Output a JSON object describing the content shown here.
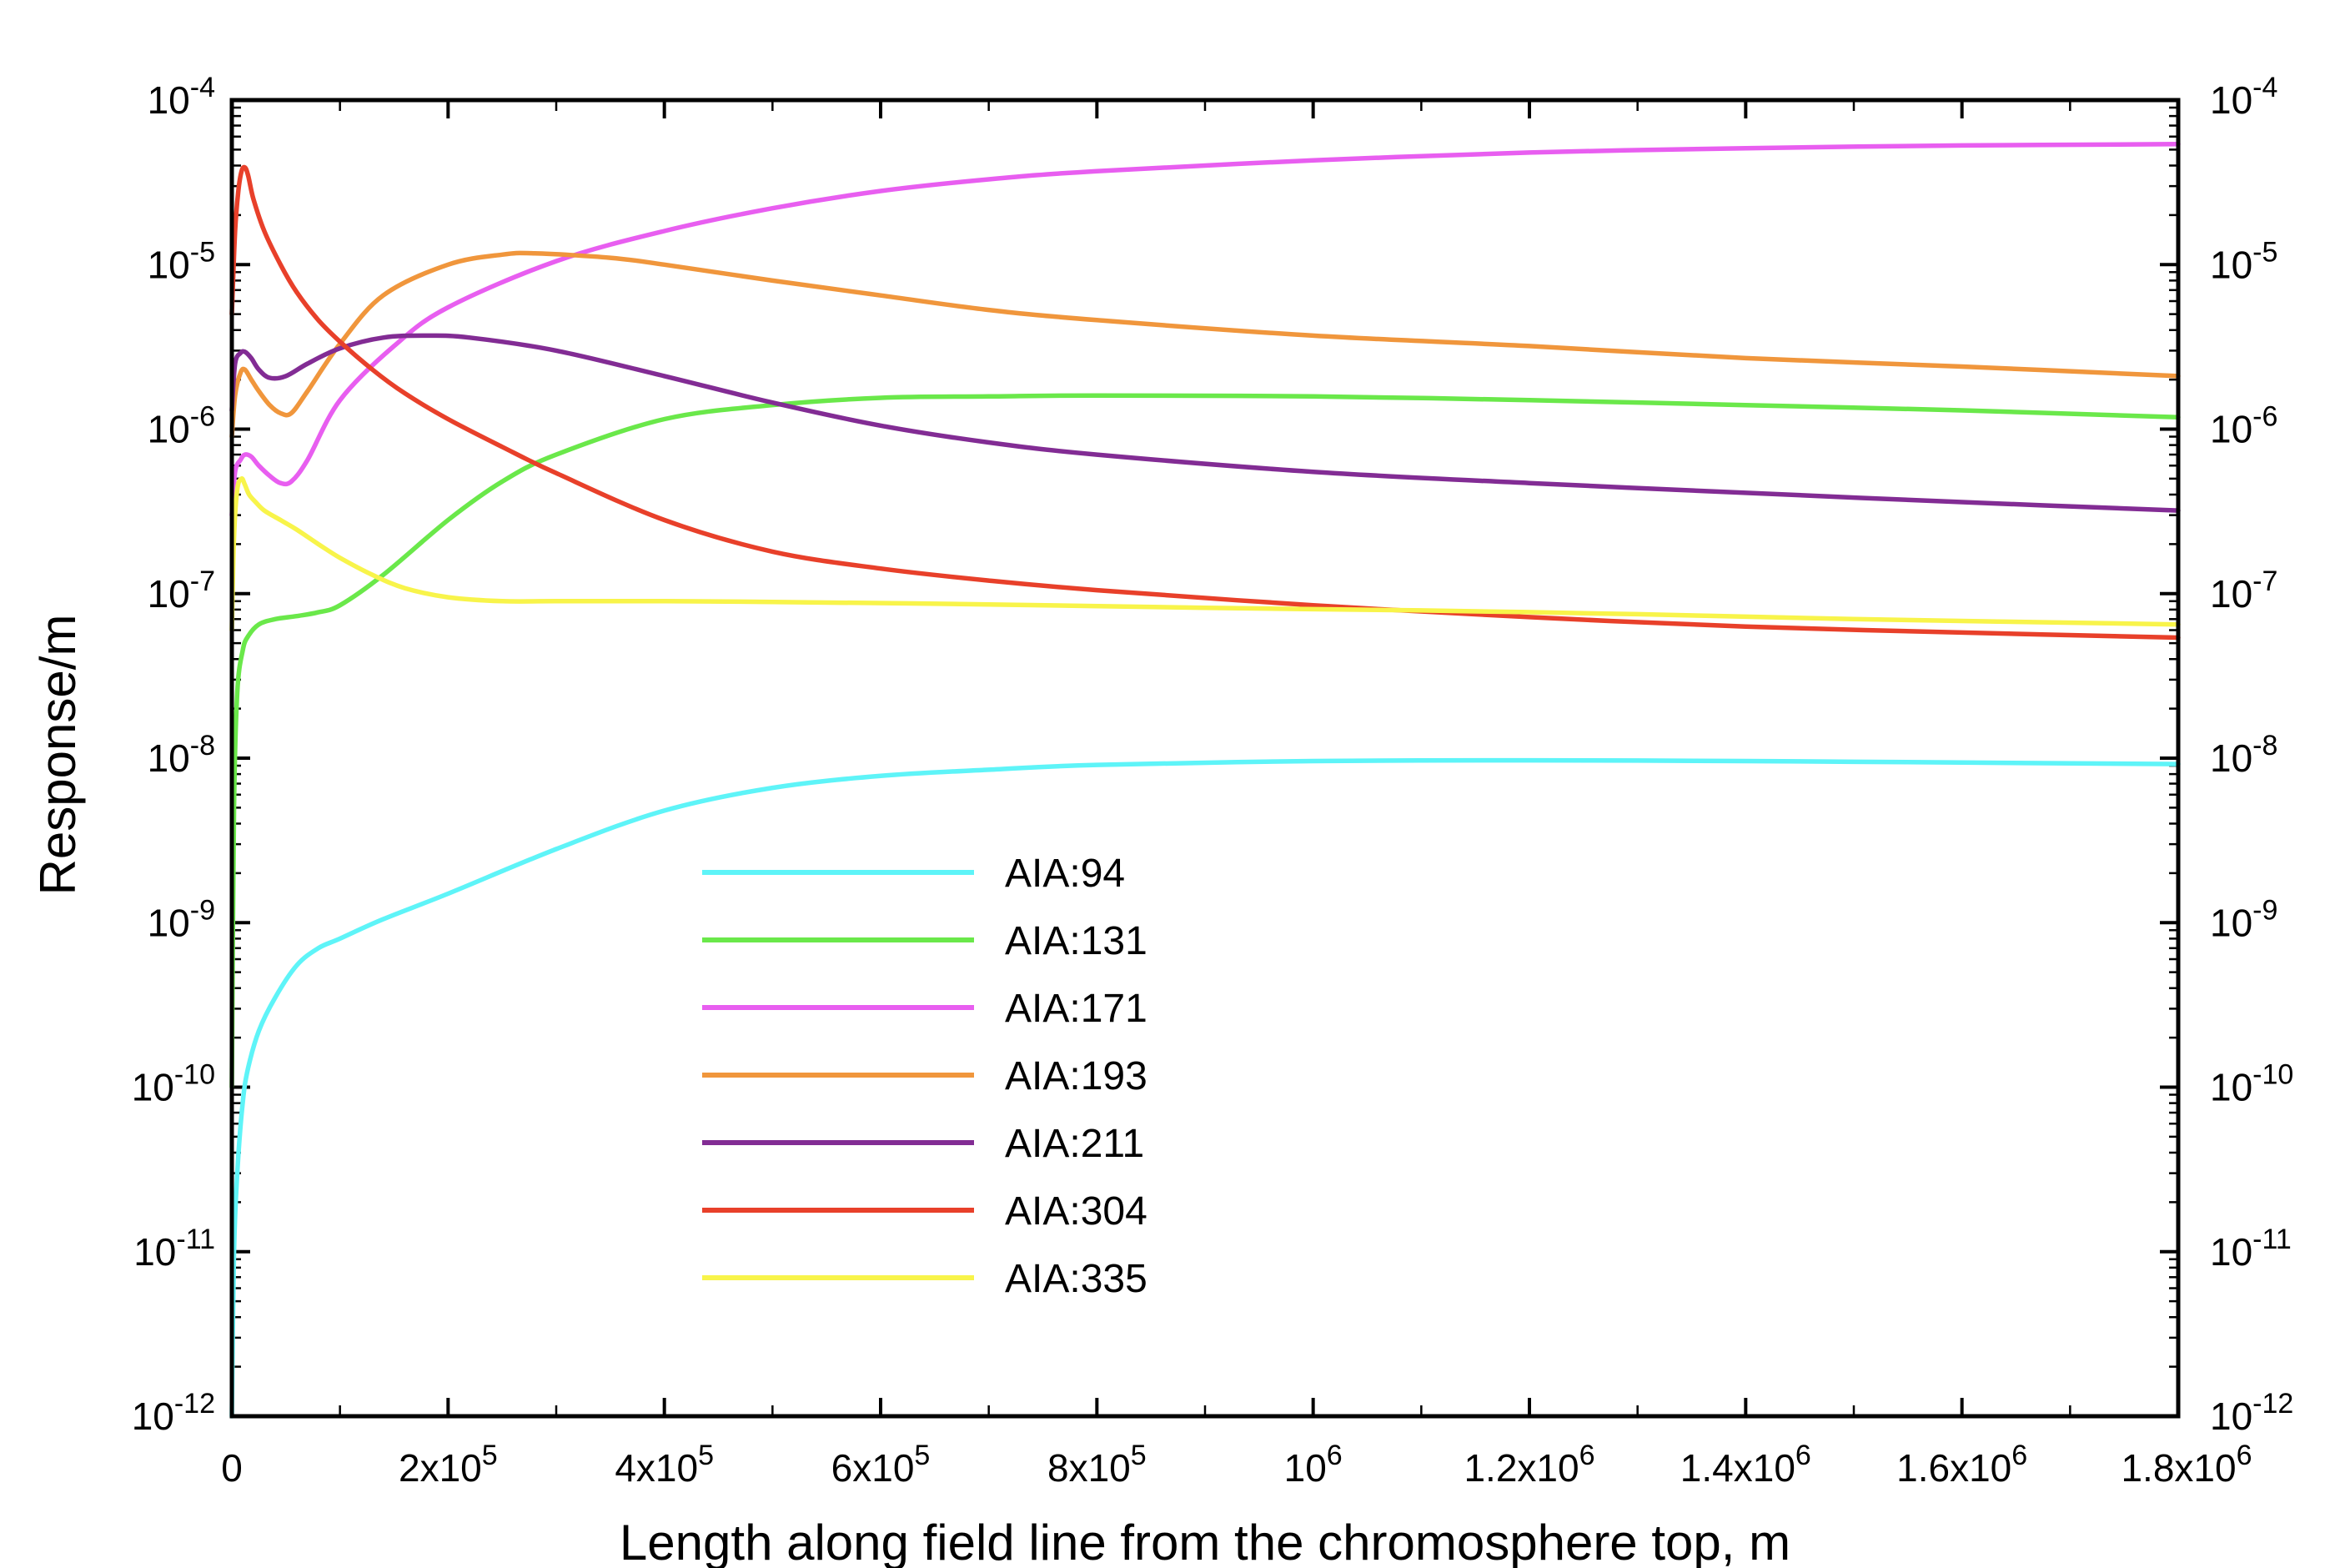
{
  "chart_data": {
    "type": "line",
    "title": "",
    "xlabel": "Length along field line from the chromosphere top, m",
    "ylabel": "Response/m",
    "xscale": "linear",
    "yscale": "log",
    "xlim": [
      0,
      1800000
    ],
    "ylim": [
      1e-12,
      0.0001
    ],
    "legend_position": "lower-center",
    "x_ticks": [
      {
        "value": 0,
        "base": "0",
        "exp": ""
      },
      {
        "value": 200000,
        "base": "2x10",
        "exp": "5"
      },
      {
        "value": 400000,
        "base": "4x10",
        "exp": "5"
      },
      {
        "value": 600000,
        "base": "6x10",
        "exp": "5"
      },
      {
        "value": 800000,
        "base": "8x10",
        "exp": "5"
      },
      {
        "value": 1000000,
        "base": "10",
        "exp": "6"
      },
      {
        "value": 1200000,
        "base": "1.2x10",
        "exp": "6"
      },
      {
        "value": 1400000,
        "base": "1.4x10",
        "exp": "6"
      },
      {
        "value": 1600000,
        "base": "1.6x10",
        "exp": "6"
      },
      {
        "value": 1800000,
        "base": "1.8x10",
        "exp": "6"
      }
    ],
    "y_ticks": [
      {
        "value": -4,
        "base": "10",
        "exp": "-4"
      },
      {
        "value": -5,
        "base": "10",
        "exp": "-5"
      },
      {
        "value": -6,
        "base": "10",
        "exp": "-6"
      },
      {
        "value": -7,
        "base": "10",
        "exp": "-7"
      },
      {
        "value": -8,
        "base": "10",
        "exp": "-8"
      },
      {
        "value": -9,
        "base": "10",
        "exp": "-9"
      },
      {
        "value": -10,
        "base": "10",
        "exp": "-10"
      },
      {
        "value": -11,
        "base": "10",
        "exp": "-11"
      },
      {
        "value": -12,
        "base": "10",
        "exp": "-12"
      }
    ],
    "series": [
      {
        "name": "AIA:94",
        "color": "#5ef4f8",
        "x": [
          0,
          2000,
          5000,
          10000,
          15000,
          25000,
          40000,
          60000,
          80000,
          100000,
          140000,
          200000,
          300000,
          400000,
          500000,
          600000,
          700000,
          800000,
          1000000,
          1200000,
          1400000,
          1600000,
          1800000
        ],
        "y": [
          1e-12,
          1e-11,
          3e-11,
          8e-11,
          1.3e-10,
          2.2e-10,
          3.5e-10,
          5.5e-10,
          7e-10,
          8e-10,
          1.05e-09,
          1.5e-09,
          2.8e-09,
          4.8e-09,
          6.6e-09,
          7.8e-09,
          8.5e-09,
          9.1e-09,
          9.6e-09,
          9.7e-09,
          9.6e-09,
          9.4e-09,
          9.2e-09
        ]
      },
      {
        "name": "AIA:131",
        "color": "#6ae84a",
        "x": [
          0,
          2000,
          5000,
          10000,
          15000,
          25000,
          40000,
          60000,
          80000,
          100000,
          140000,
          200000,
          250000,
          300000,
          400000,
          500000,
          600000,
          700000,
          800000,
          1000000,
          1200000,
          1400000,
          1600000,
          1800000
        ],
        "y": [
          1e-10,
          5e-09,
          2.5e-08,
          4.5e-08,
          5.5e-08,
          6.5e-08,
          7e-08,
          7.3e-08,
          7.7e-08,
          8.5e-08,
          1.3e-07,
          2.8e-07,
          4.8e-07,
          7e-07,
          1.15e-06,
          1.4e-06,
          1.55e-06,
          1.58e-06,
          1.6e-06,
          1.58e-06,
          1.5e-06,
          1.4e-06,
          1.3e-06,
          1.18e-06
        ]
      },
      {
        "name": "AIA:171",
        "color": "#e85ef0",
        "x": [
          0,
          3000,
          8000,
          12000,
          18000,
          25000,
          35000,
          45000,
          55000,
          70000,
          100000,
          150000,
          200000,
          300000,
          400000,
          500000,
          600000,
          700000,
          800000,
          1000000,
          1200000,
          1400000,
          1600000,
          1800000
        ],
        "y": [
          3e-07,
          5.5e-07,
          6.5e-07,
          7e-07,
          6.8e-07,
          6e-07,
          5.2e-07,
          4.7e-07,
          4.8e-07,
          6.5e-07,
          1.5e-06,
          3.2e-06,
          5.5e-06,
          1.05e-05,
          1.6e-05,
          2.2e-05,
          2.8e-05,
          3.3e-05,
          3.7e-05,
          4.3e-05,
          4.8e-05,
          5.1e-05,
          5.3e-05,
          5.4e-05
        ]
      },
      {
        "name": "AIA:193",
        "color": "#f0963c",
        "x": [
          0,
          3000,
          8000,
          12000,
          18000,
          25000,
          35000,
          45000,
          55000,
          70000,
          100000,
          140000,
          200000,
          250000,
          280000,
          350000,
          400000,
          500000,
          600000,
          700000,
          800000,
          1000000,
          1200000,
          1400000,
          1600000,
          1800000
        ],
        "y": [
          9e-07,
          1.6e-06,
          2.2e-06,
          2.3e-06,
          2e-06,
          1.7e-06,
          1.4e-06,
          1.25e-06,
          1.25e-06,
          1.7e-06,
          3.3e-06,
          6.5e-06,
          1e-05,
          1.15e-05,
          1.17e-05,
          1.1e-05,
          1e-05,
          8e-06,
          6.5e-06,
          5.3e-06,
          4.6e-06,
          3.7e-06,
          3.2e-06,
          2.7e-06,
          2.4e-06,
          2.1e-06
        ]
      },
      {
        "name": "AIA:211",
        "color": "#822c94",
        "x": [
          0,
          3000,
          8000,
          12000,
          18000,
          25000,
          35000,
          50000,
          70000,
          100000,
          140000,
          180000,
          220000,
          300000,
          400000,
          500000,
          600000,
          700000,
          800000,
          1000000,
          1200000,
          1400000,
          1600000,
          1800000
        ],
        "y": [
          1.3e-06,
          2.5e-06,
          2.9e-06,
          2.95e-06,
          2.7e-06,
          2.3e-06,
          2.05e-06,
          2.1e-06,
          2.5e-06,
          3.1e-06,
          3.6e-06,
          3.7e-06,
          3.6e-06,
          3e-06,
          2.1e-06,
          1.45e-06,
          1.05e-06,
          8.3e-07,
          7e-07,
          5.5e-07,
          4.7e-07,
          4.1e-07,
          3.6e-07,
          3.2e-07
        ]
      },
      {
        "name": "AIA:304",
        "color": "#e8402a",
        "x": [
          0,
          3000,
          6000,
          9000,
          12000,
          15000,
          20000,
          30000,
          45000,
          60000,
          80000,
          100000,
          130000,
          160000,
          200000,
          250000,
          300000,
          400000,
          500000,
          600000,
          700000,
          800000,
          1000000,
          1200000,
          1400000,
          1600000,
          1800000
        ],
        "y": [
          5e-06,
          1.6e-05,
          2.8e-05,
          3.7e-05,
          3.9e-05,
          3.5e-05,
          2.5e-05,
          1.6e-05,
          1e-05,
          6.8e-06,
          4.6e-06,
          3.4e-06,
          2.3e-06,
          1.65e-06,
          1.15e-06,
          7.8e-07,
          5.4e-07,
          2.8e-07,
          1.8e-07,
          1.42e-07,
          1.2e-07,
          1.05e-07,
          8.5e-08,
          7.2e-08,
          6.3e-08,
          5.8e-08,
          5.4e-08
        ]
      },
      {
        "name": "AIA:335",
        "color": "#f8f44a",
        "x": [
          0,
          2000,
          5000,
          9000,
          12000,
          16000,
          22000,
          30000,
          45000,
          60000,
          80000,
          100000,
          130000,
          160000,
          200000,
          250000,
          300000,
          400000,
          500000,
          700000,
          900000,
          1100000,
          1300000,
          1500000,
          1800000
        ],
        "y": [
          6e-08,
          2.2e-07,
          4.3e-07,
          5e-07,
          4.6e-07,
          4e-07,
          3.6e-07,
          3.2e-07,
          2.8e-07,
          2.45e-07,
          2e-07,
          1.65e-07,
          1.3e-07,
          1.08e-07,
          9.5e-08,
          9e-08,
          9e-08,
          9e-08,
          8.9e-08,
          8.6e-08,
          8.2e-08,
          7.9e-08,
          7.5e-08,
          7e-08,
          6.5e-08
        ]
      }
    ]
  }
}
